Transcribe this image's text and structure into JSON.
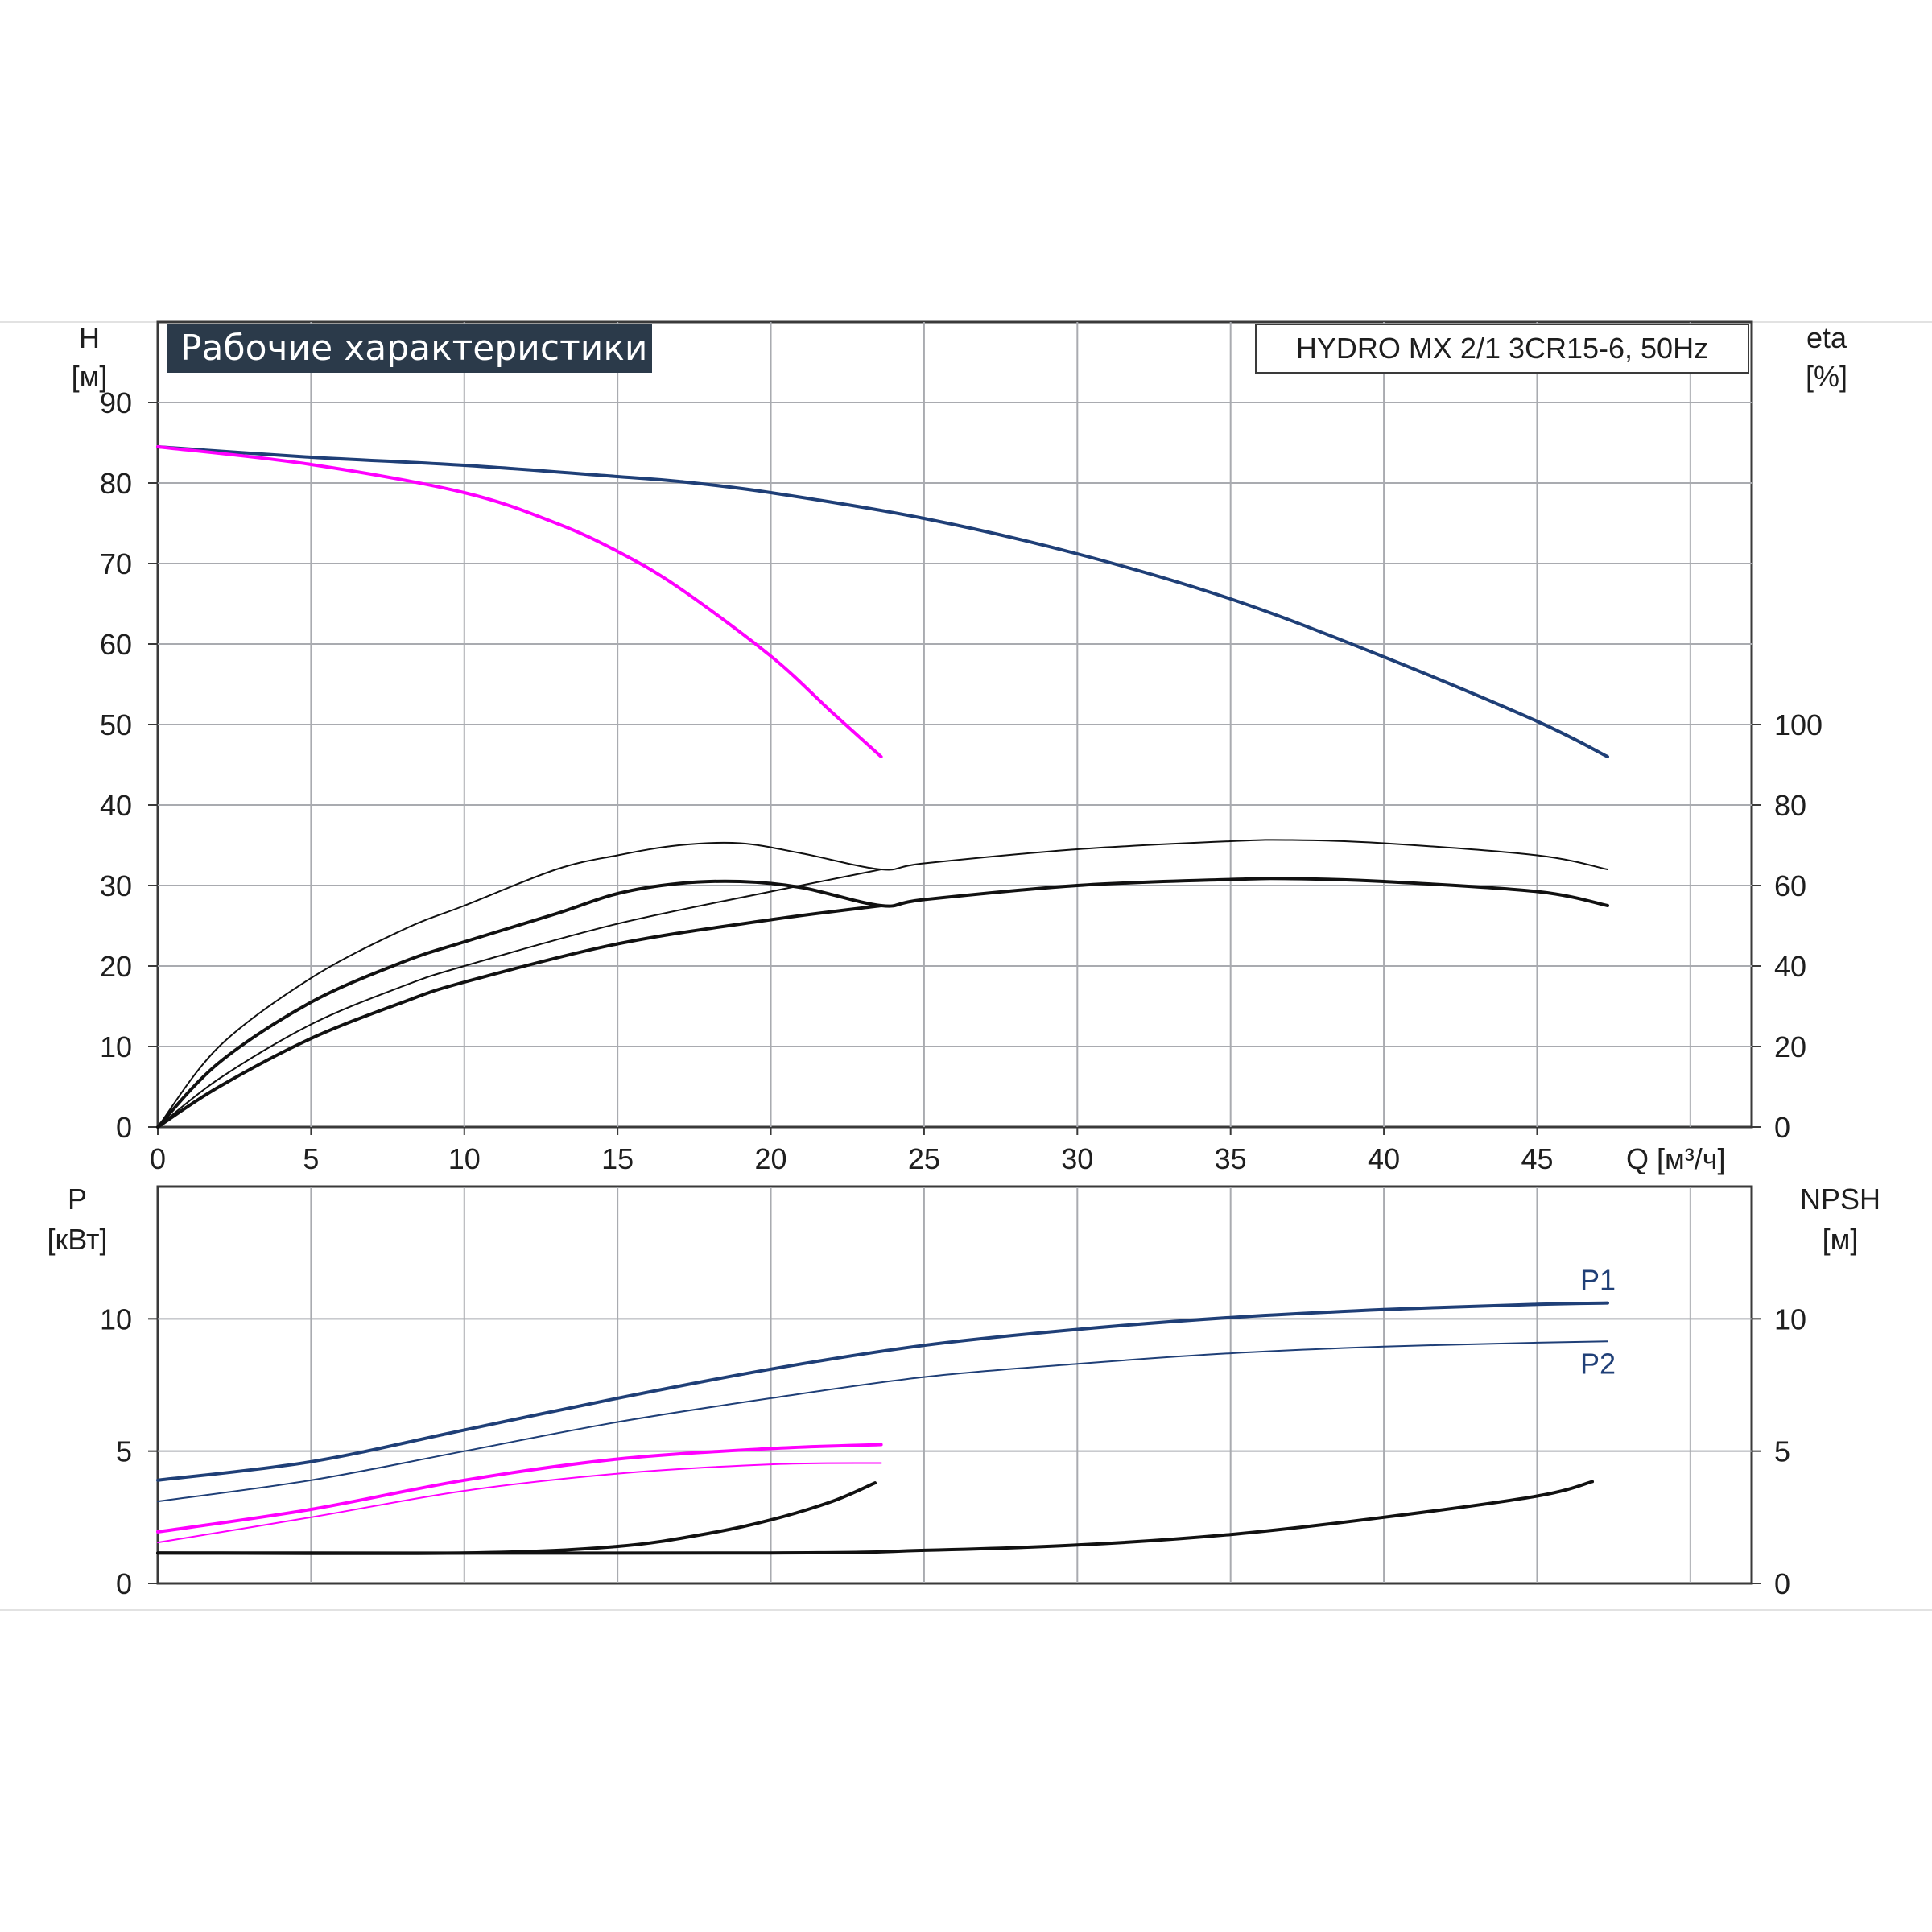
{
  "chart_data": [
    {
      "type": "line",
      "panel": "top",
      "title": "Рабочие характеристики",
      "model": "HYDRO MX 2/1 3CR15-6, 50Hz",
      "x_label": "Q [м³/ч]",
      "x_ticks": [
        "0",
        "5",
        "10",
        "15",
        "20",
        "25",
        "30",
        "35",
        "40",
        "45"
      ],
      "xlim": [
        0,
        52
      ],
      "y_left": {
        "label_line1": "H",
        "label_line2": "[м]",
        "ticks": [
          "0",
          "10",
          "20",
          "30",
          "40",
          "50",
          "60",
          "70",
          "80",
          "90"
        ],
        "ylim": [
          0,
          100
        ]
      },
      "y_right": {
        "label_line1": "eta",
        "label_line2": "[%]",
        "ticks": [
          "0",
          "20",
          "40",
          "60",
          "80",
          "100"
        ],
        "range": [
          0,
          100
        ],
        "maps_to_left": [
          0,
          50
        ]
      },
      "grid": true,
      "series": [
        {
          "axis": "left",
          "color": "#1f3f77",
          "width": 4,
          "points": [
            [
              0,
              84.5
            ],
            [
              5,
              83.2
            ],
            [
              10,
              82.2
            ],
            [
              15,
              80.8
            ],
            [
              17,
              80.2
            ],
            [
              20,
              78.8
            ],
            [
              25,
              75.6
            ],
            [
              30,
              71.2
            ],
            [
              35,
              65.6
            ],
            [
              40,
              58.4
            ],
            [
              45,
              50.4
            ],
            [
              47.3,
              46
            ]
          ]
        },
        {
          "axis": "left",
          "color": "#ff00ff",
          "width": 4,
          "points": [
            [
              0,
              84.5
            ],
            [
              5,
              82.3
            ],
            [
              10,
              78.8
            ],
            [
              13,
              75
            ],
            [
              15,
              71.5
            ],
            [
              17,
              67
            ],
            [
              20,
              58.5
            ],
            [
              22,
              51.5
            ],
            [
              23.6,
              46
            ]
          ]
        },
        {
          "axis": "right",
          "color": "#111111",
          "width": 2,
          "points": [
            [
              0,
              0
            ],
            [
              2,
              20
            ],
            [
              5,
              37
            ],
            [
              8,
              49
            ],
            [
              10,
              55
            ],
            [
              13,
              64
            ],
            [
              15,
              67.5
            ],
            [
              17,
              70
            ],
            [
              19,
              70.5
            ],
            [
              21,
              68
            ],
            [
              23.6,
              64
            ],
            [
              25,
              65.5
            ],
            [
              30,
              69
            ],
            [
              35,
              71
            ],
            [
              37,
              71.3
            ],
            [
              40,
              70.5
            ],
            [
              45,
              67.5
            ],
            [
              47.3,
              64
            ]
          ]
        },
        {
          "axis": "right",
          "color": "#111111",
          "width": 4,
          "points": [
            [
              0,
              0
            ],
            [
              2,
              16
            ],
            [
              5,
              31
            ],
            [
              8,
              41
            ],
            [
              10,
              46
            ],
            [
              13,
              53
            ],
            [
              15,
              58
            ],
            [
              17,
              60.5
            ],
            [
              19,
              61
            ],
            [
              21,
              59.5
            ],
            [
              23.6,
              55
            ],
            [
              25,
              56.5
            ],
            [
              30,
              60
            ],
            [
              35,
              61.5
            ],
            [
              37,
              61.7
            ],
            [
              40,
              61
            ],
            [
              45,
              58.5
            ],
            [
              47.3,
              55
            ]
          ]
        },
        {
          "axis": "right",
          "color": "#111111",
          "width": 2,
          "points": [
            [
              0,
              0
            ],
            [
              2,
              12
            ],
            [
              5,
              25.5
            ],
            [
              8,
              35
            ],
            [
              10,
              40
            ],
            [
              15,
              50.5
            ],
            [
              20,
              58.5
            ],
            [
              23.6,
              64
            ]
          ]
        },
        {
          "axis": "right",
          "color": "#111111",
          "width": 4,
          "points": [
            [
              0,
              0
            ],
            [
              2,
              10
            ],
            [
              5,
              22
            ],
            [
              8,
              31
            ],
            [
              10,
              36
            ],
            [
              15,
              45.5
            ],
            [
              20,
              51.5
            ],
            [
              23.6,
              55
            ]
          ]
        }
      ]
    },
    {
      "type": "line",
      "panel": "bottom",
      "x_ticks": [
        "0",
        "5",
        "10",
        "15",
        "20",
        "25",
        "30",
        "35",
        "40",
        "45"
      ],
      "xlim": [
        0,
        52
      ],
      "y_left": {
        "label_line1": "P",
        "label_line2": "[кВт]",
        "ticks": [
          "0",
          "5",
          "10"
        ],
        "ylim": [
          0,
          15
        ]
      },
      "y_right": {
        "label_line1": "NPSH",
        "label_line2": "[м]",
        "ticks": [
          "0",
          "5",
          "10"
        ],
        "range": [
          0,
          15
        ]
      },
      "grid": true,
      "series": [
        {
          "axis": "left",
          "name": "P1",
          "color": "#1f3f77",
          "width": 4,
          "points": [
            [
              0,
              3.9
            ],
            [
              5,
              4.6
            ],
            [
              10,
              5.8
            ],
            [
              15,
              7.0
            ],
            [
              20,
              8.1
            ],
            [
              25,
              9.0
            ],
            [
              30,
              9.6
            ],
            [
              35,
              10.05
            ],
            [
              40,
              10.35
            ],
            [
              45,
              10.55
            ],
            [
              47.3,
              10.6
            ]
          ]
        },
        {
          "axis": "left",
          "name": "P2",
          "color": "#1f3f77",
          "width": 2,
          "points": [
            [
              0,
              3.1
            ],
            [
              5,
              3.9
            ],
            [
              10,
              5.0
            ],
            [
              15,
              6.1
            ],
            [
              20,
              7.0
            ],
            [
              25,
              7.8
            ],
            [
              30,
              8.3
            ],
            [
              35,
              8.7
            ],
            [
              40,
              8.95
            ],
            [
              45,
              9.1
            ],
            [
              47.3,
              9.15
            ]
          ]
        },
        {
          "axis": "left",
          "color": "#ff00ff",
          "width": 4,
          "points": [
            [
              0,
              1.95
            ],
            [
              5,
              2.8
            ],
            [
              10,
              3.9
            ],
            [
              15,
              4.7
            ],
            [
              20,
              5.1
            ],
            [
              23.6,
              5.25
            ]
          ]
        },
        {
          "axis": "left",
          "color": "#ff00ff",
          "width": 2,
          "points": [
            [
              0,
              1.55
            ],
            [
              5,
              2.5
            ],
            [
              10,
              3.5
            ],
            [
              15,
              4.15
            ],
            [
              20,
              4.5
            ],
            [
              23.6,
              4.55
            ]
          ]
        },
        {
          "axis": "right",
          "color": "#111111",
          "width": 4,
          "points": [
            [
              0,
              1.15
            ],
            [
              10,
              1.15
            ],
            [
              15,
              1.4
            ],
            [
              18,
              1.9
            ],
            [
              20,
              2.4
            ],
            [
              22,
              3.1
            ],
            [
              23.4,
              3.8
            ]
          ]
        },
        {
          "axis": "right",
          "color": "#111111",
          "width": 4,
          "points": [
            [
              0,
              1.15
            ],
            [
              20,
              1.15
            ],
            [
              25,
              1.25
            ],
            [
              30,
              1.45
            ],
            [
              35,
              1.85
            ],
            [
              40,
              2.5
            ],
            [
              45,
              3.3
            ],
            [
              46.8,
              3.85
            ]
          ]
        }
      ],
      "labels": [
        {
          "text": "P1",
          "x": 47.3,
          "y": 10.6,
          "color": "#1f3f77"
        },
        {
          "text": "P2",
          "x": 47.3,
          "y": 9.15,
          "color": "#1f3f77"
        }
      ]
    }
  ]
}
